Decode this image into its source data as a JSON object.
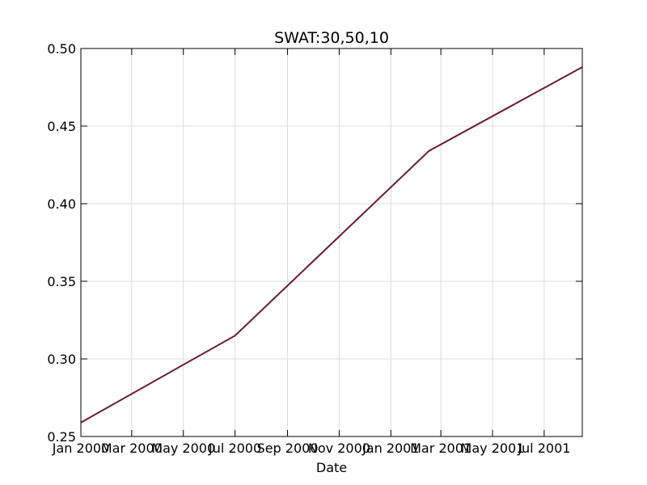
{
  "chart_data": {
    "type": "line",
    "title": "SWAT:30,50,10",
    "xlabel": "Date",
    "ylabel": "",
    "x_ticks": [
      "Jan 2000",
      "Mar 2000",
      "May 2000",
      "Jul 2000",
      "Sep 2000",
      "Nov 2000",
      "Jan 2001",
      "Mar 2001",
      "May 2001",
      "Jul 2001"
    ],
    "y_ticks": [
      "0.25",
      "0.30",
      "0.35",
      "0.40",
      "0.45",
      "0.50"
    ],
    "xlim": [
      "2000-01-01",
      "2001-08-15"
    ],
    "ylim": [
      0.25,
      0.5
    ],
    "grid": true,
    "series": [
      {
        "color": "#6b1a3a",
        "points": [
          {
            "x": "2000-01-01",
            "y": 0.259
          },
          {
            "x": "2000-07-01",
            "y": 0.315
          },
          {
            "x": "2001-02-15",
            "y": 0.434
          },
          {
            "x": "2001-08-15",
            "y": 0.488
          }
        ]
      }
    ]
  }
}
